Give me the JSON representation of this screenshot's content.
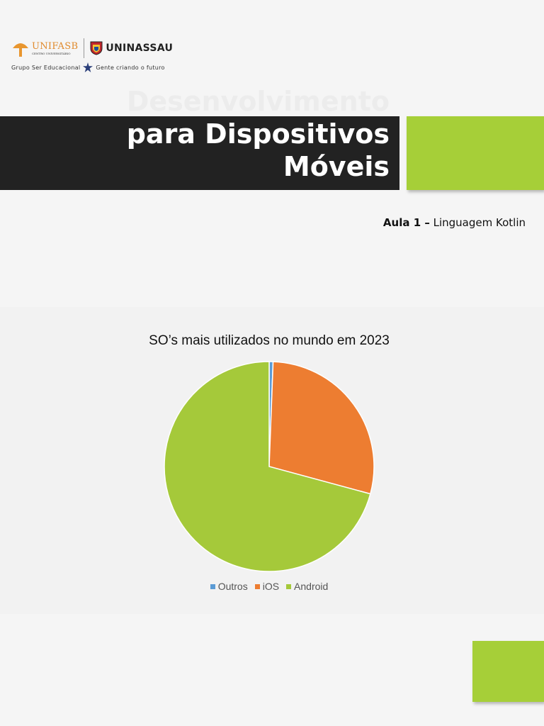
{
  "logos": {
    "unifasb_name": "UNIFASB",
    "unifasb_sub": "CENTRO UNIVERSITÁRIO",
    "uninassau_name": "UNINASSAU",
    "tagline_left": "Grupo Ser Educacional",
    "tagline_right": "Gente criando o futuro",
    "colors": {
      "unifasb": "#e08a2c"
    }
  },
  "slide": {
    "title_lines": [
      "Desenvolvimento",
      "para Dispositivos",
      "Móveis"
    ],
    "subtitle_bold": "Aula 1 –",
    "subtitle_text": " Linguagem Kotlin",
    "colors": {
      "title_bar": "#222222",
      "accent": "#a6cf38"
    }
  },
  "chart_data": {
    "type": "pie",
    "title": "SO’s mais utilizados no mundo em 2023",
    "categories": [
      "Outros",
      "iOS",
      "Android"
    ],
    "values": [
      0.6,
      28.6,
      70.8
    ],
    "colors": [
      "#5b9bd5",
      "#ed7d31",
      "#a5c93a"
    ],
    "legend_position": "bottom"
  }
}
